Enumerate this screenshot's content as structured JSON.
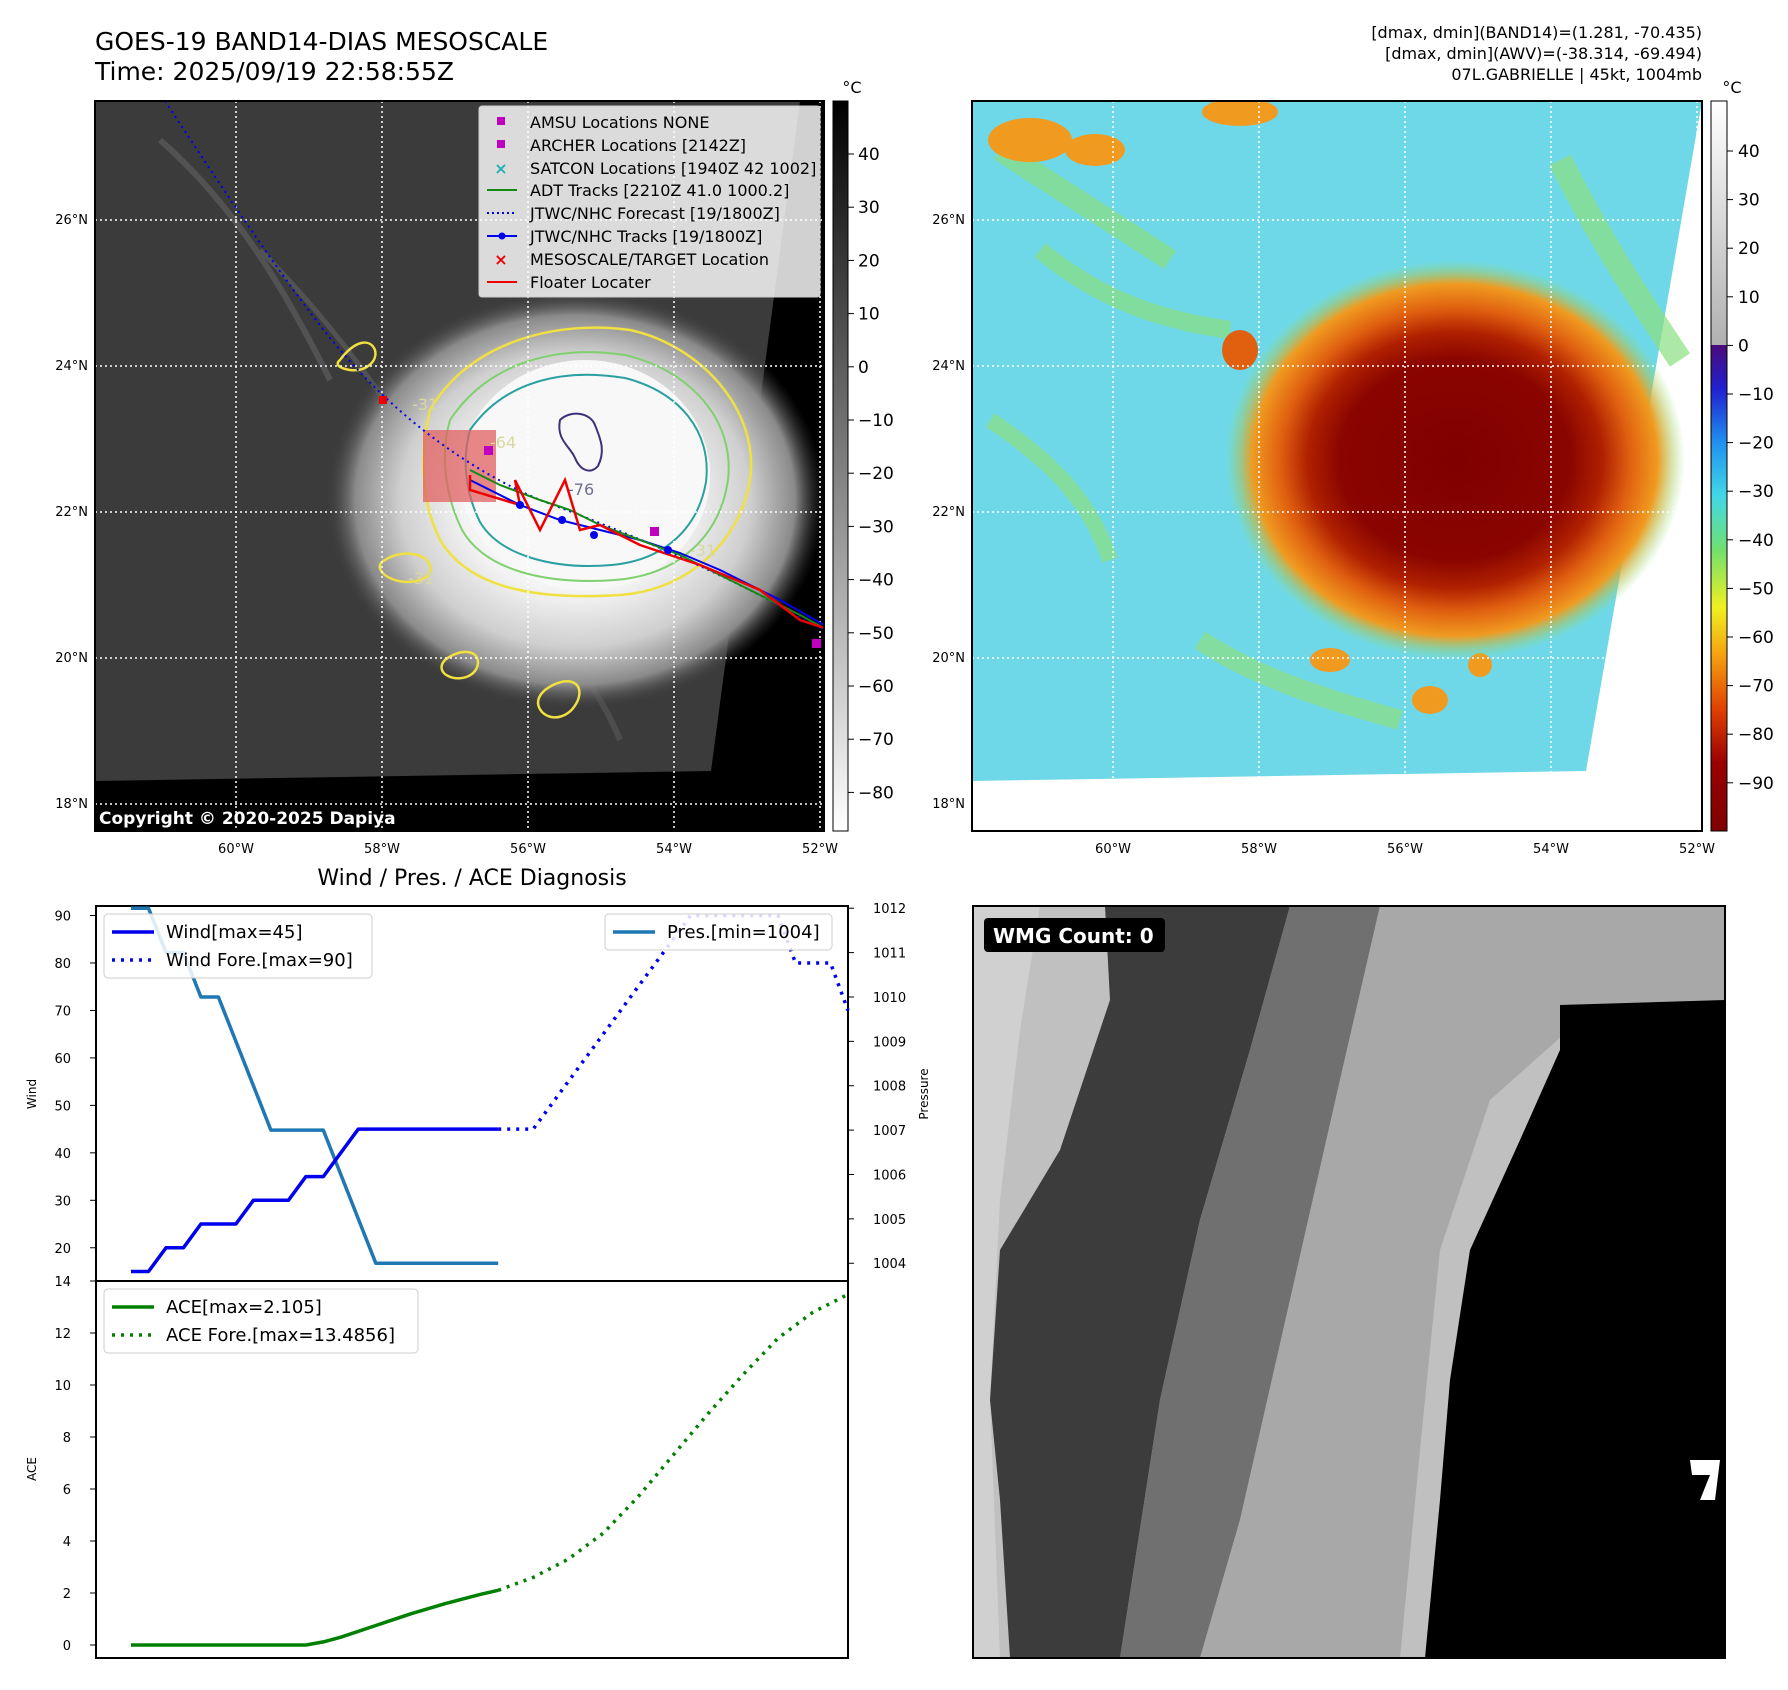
{
  "header": {
    "title_line1": "GOES-19 BAND14-DIAS MESOSCALE",
    "title_line2": "Time: 2025/09/19 22:58:55Z",
    "stats_line1": "[dmax, dmin](BAND14)=(1.281, -70.435)",
    "stats_line2": "[dmax, dmin](AWV)=(-38.314, -69.494)",
    "stats_line3": "07L.GABRIELLE | 45kt, 1004mb"
  },
  "ir_map": {
    "copyright": "Copyright © 2020-2025 Dapiya",
    "lat_labels": [
      "26°N",
      "24°N",
      "22°N",
      "20°N",
      "18°N"
    ],
    "lon_labels": [
      "60°W",
      "58°W",
      "56°W",
      "54°W",
      "52°W"
    ],
    "contour_labels": [
      "-31",
      "-64",
      "-76",
      "-31",
      "-31"
    ],
    "colorbar_unit": "°C",
    "colorbar_ticks": [
      "40",
      "30",
      "20",
      "10",
      "0",
      "−10",
      "−20",
      "−30",
      "−40",
      "−50",
      "−60",
      "−70",
      "−80"
    ],
    "legend": [
      {
        "label": "AMSU Locations NONE",
        "marker": "square",
        "color": "#c000c0"
      },
      {
        "label": "ARCHER Locations [2142Z]",
        "marker": "square",
        "color": "#c000c0"
      },
      {
        "label": "SATCON Locations [1940Z 42 1002]",
        "marker": "x",
        "color": "#20b0b0"
      },
      {
        "label": "ADT Tracks [2210Z 41.0 1000.2]",
        "marker": "line",
        "color": "#138a13"
      },
      {
        "label": "JTWC/NHC Forecast [19/1800Z]",
        "marker": "dotted",
        "color": "#0000ee"
      },
      {
        "label": "JTWC/NHC Tracks [19/1800Z]",
        "marker": "line-dot",
        "color": "#0000ee"
      },
      {
        "label": "MESOSCALE/TARGET Location",
        "marker": "x",
        "color": "#ee0000"
      },
      {
        "label": "Floater Locater",
        "marker": "line",
        "color": "#ee0000"
      }
    ]
  },
  "awv_map": {
    "lat_labels": [
      "26°N",
      "24°N",
      "22°N",
      "20°N",
      "18°N"
    ],
    "lon_labels": [
      "60°W",
      "58°W",
      "56°W",
      "54°W",
      "52°W"
    ],
    "colorbar_unit": "°C",
    "colorbar_ticks": [
      "40",
      "30",
      "20",
      "10",
      "0",
      "−10",
      "−20",
      "−30",
      "−40",
      "−50",
      "−60",
      "−70",
      "−80",
      "−90"
    ]
  },
  "wmg": {
    "label": "WMG Count: 0"
  },
  "colors": {
    "wind": "#0000ee",
    "pressure": "#1f77b4",
    "ace": "#008000"
  },
  "chart_data": [
    {
      "type": "line",
      "title": "Wind / Pres. / ACE Diagnosis",
      "ylabel": "Wind",
      "ylim": [
        13,
        92
      ],
      "yticks": [
        20,
        30,
        40,
        50,
        60,
        70,
        80,
        90
      ],
      "y2label": "Pressure",
      "y2lim": [
        1003.6,
        1012.05
      ],
      "y2ticks": [
        1004,
        1005,
        1006,
        1007,
        1008,
        1009,
        1010,
        1011,
        1012
      ],
      "xlim": [
        0,
        43
      ],
      "series": [
        {
          "name": "Wind[max=45]",
          "axis": "left",
          "style": "solid",
          "color": "#0000ee",
          "x": [
            2,
            3,
            4,
            5,
            6,
            7,
            8,
            9,
            10,
            11,
            12,
            13,
            14,
            15,
            16,
            17,
            18,
            19,
            20,
            21,
            22,
            23
          ],
          "values": [
            15,
            15,
            20,
            20,
            25,
            25,
            25,
            30,
            30,
            30,
            35,
            35,
            40,
            45,
            45,
            45,
            45,
            45,
            45,
            45,
            45,
            45
          ]
        },
        {
          "name": "Wind Fore.[max=90]",
          "axis": "left",
          "style": "dotted",
          "color": "#0000ee",
          "x": [
            23,
            24,
            25,
            26,
            27,
            28,
            29,
            30,
            31,
            32,
            33,
            34,
            35,
            36,
            37,
            38,
            39,
            40,
            41,
            42,
            43
          ],
          "values": [
            45,
            45,
            45,
            50,
            55,
            60,
            65,
            70,
            75,
            80,
            85,
            90,
            90,
            90,
            90,
            90,
            90,
            80,
            80,
            80,
            70
          ]
        },
        {
          "name": "Pres.[min=1004]",
          "axis": "right",
          "style": "solid",
          "color": "#1f77b4",
          "x": [
            2,
            3,
            4,
            5,
            6,
            7,
            8,
            9,
            10,
            11,
            12,
            13,
            14,
            15,
            16,
            17,
            18,
            19,
            20,
            21,
            22,
            23
          ],
          "values": [
            1012,
            1012,
            1011,
            1011,
            1010,
            1010,
            1009,
            1008,
            1007,
            1007,
            1007,
            1007,
            1006,
            1005,
            1004,
            1004,
            1004,
            1004,
            1004,
            1004,
            1004,
            1004
          ]
        }
      ]
    },
    {
      "type": "line",
      "ylabel": "ACE",
      "ylim": [
        -0.5,
        14
      ],
      "yticks": [
        0,
        2,
        4,
        6,
        8,
        10,
        12,
        14
      ],
      "xlim": [
        0,
        43
      ],
      "series": [
        {
          "name": "ACE[max=2.105]",
          "style": "solid",
          "color": "#008000",
          "x": [
            2,
            12,
            13,
            14,
            16,
            18,
            20,
            22,
            23
          ],
          "values": [
            0,
            0,
            0.12,
            0.3,
            0.75,
            1.2,
            1.6,
            1.95,
            2.105
          ]
        },
        {
          "name": "ACE Fore.[max=13.4856]",
          "style": "dotted",
          "color": "#008000",
          "x": [
            23,
            25,
            27,
            29,
            31,
            33,
            35,
            37,
            39,
            41,
            43
          ],
          "values": [
            2.105,
            2.6,
            3.3,
            4.3,
            5.7,
            7.3,
            8.9,
            10.4,
            11.8,
            12.8,
            13.4856
          ]
        }
      ]
    }
  ]
}
